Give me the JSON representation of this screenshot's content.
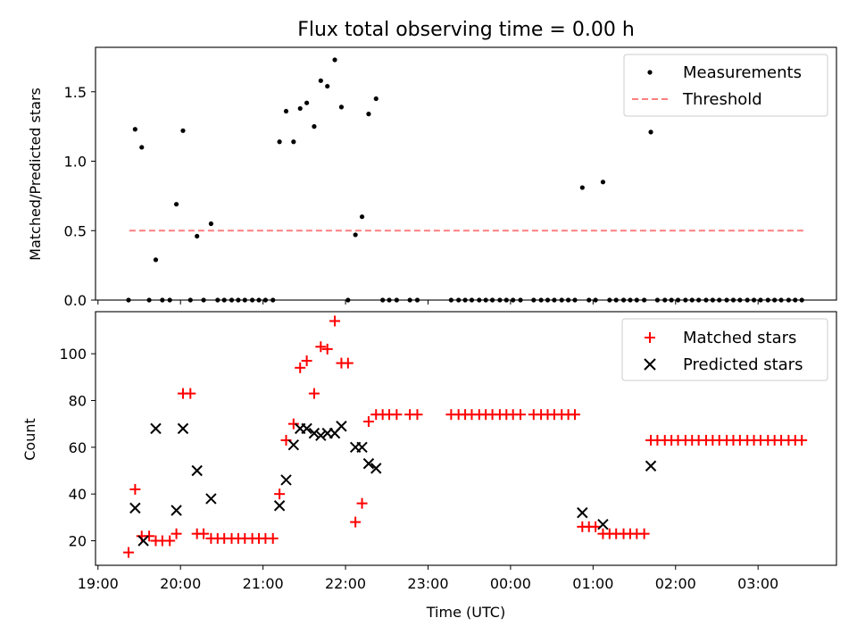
{
  "chart_data": {
    "title": "Flux total observing time = 0.00 h",
    "x_axis": {
      "label": "Time (UTC)",
      "ticks": [
        "19:00",
        "20:00",
        "21:00",
        "22:00",
        "23:00",
        "00:00",
        "01:00",
        "02:00",
        "03:00"
      ],
      "tick_hours": [
        19,
        20,
        21,
        22,
        23,
        24,
        25,
        26,
        27
      ],
      "range_hours": [
        18.97,
        27.95
      ]
    },
    "panels": [
      {
        "type": "scatter",
        "ylabel": "Matched/Predicted stars",
        "ylim": [
          0,
          1.82
        ],
        "yticks": [
          0.0,
          0.5,
          1.0,
          1.5
        ],
        "ytick_labels": [
          "0.0",
          "0.5",
          "1.0",
          "1.5"
        ],
        "legend_position": "upper right",
        "threshold": {
          "name": "Threshold",
          "color": "#ff7f7f",
          "y": 0.5,
          "x_range": [
            19.38,
            27.55
          ]
        },
        "series": [
          {
            "name": "Measurements",
            "color": "#000000",
            "marker": "dot",
            "points": [
              [
                19.37,
                0.0
              ],
              [
                19.45,
                1.23
              ],
              [
                19.53,
                1.1
              ],
              [
                19.62,
                0.0
              ],
              [
                19.7,
                0.29
              ],
              [
                19.78,
                0.0
              ],
              [
                19.87,
                0.0
              ],
              [
                19.95,
                0.69
              ],
              [
                20.03,
                1.22
              ],
              [
                20.12,
                0.0
              ],
              [
                20.2,
                0.46
              ],
              [
                20.28,
                0.0
              ],
              [
                20.37,
                0.55
              ],
              [
                20.45,
                0.0
              ],
              [
                20.53,
                0.0
              ],
              [
                20.62,
                0.0
              ],
              [
                20.7,
                0.0
              ],
              [
                20.78,
                0.0
              ],
              [
                20.87,
                0.0
              ],
              [
                20.95,
                0.0
              ],
              [
                21.03,
                0.0
              ],
              [
                21.12,
                0.0
              ],
              [
                21.2,
                1.14
              ],
              [
                21.28,
                1.36
              ],
              [
                21.37,
                1.14
              ],
              [
                21.45,
                1.38
              ],
              [
                21.53,
                1.42
              ],
              [
                21.62,
                1.25
              ],
              [
                21.7,
                1.58
              ],
              [
                21.78,
                1.54
              ],
              [
                21.87,
                1.73
              ],
              [
                21.95,
                1.39
              ],
              [
                22.03,
                0.0
              ],
              [
                22.12,
                0.47
              ],
              [
                22.2,
                0.6
              ],
              [
                22.28,
                1.34
              ],
              [
                22.37,
                1.45
              ],
              [
                22.45,
                0.0
              ],
              [
                22.53,
                0.0
              ],
              [
                22.62,
                0.0
              ],
              [
                22.78,
                0.0
              ],
              [
                22.87,
                0.0
              ],
              [
                23.28,
                0.0
              ],
              [
                23.37,
                0.0
              ],
              [
                23.45,
                0.0
              ],
              [
                23.53,
                0.0
              ],
              [
                23.62,
                0.0
              ],
              [
                23.7,
                0.0
              ],
              [
                23.78,
                0.0
              ],
              [
                23.87,
                0.0
              ],
              [
                23.95,
                0.0
              ],
              [
                24.03,
                0.0
              ],
              [
                24.12,
                0.0
              ],
              [
                24.28,
                0.0
              ],
              [
                24.37,
                0.0
              ],
              [
                24.45,
                0.0
              ],
              [
                24.53,
                0.0
              ],
              [
                24.62,
                0.0
              ],
              [
                24.7,
                0.0
              ],
              [
                24.78,
                0.0
              ],
              [
                24.87,
                0.81
              ],
              [
                24.95,
                0.0
              ],
              [
                25.03,
                0.0
              ],
              [
                25.12,
                0.85
              ],
              [
                25.2,
                0.0
              ],
              [
                25.28,
                0.0
              ],
              [
                25.37,
                0.0
              ],
              [
                25.45,
                0.0
              ],
              [
                25.53,
                0.0
              ],
              [
                25.62,
                0.0
              ],
              [
                25.7,
                1.21
              ],
              [
                25.78,
                0.0
              ],
              [
                25.87,
                0.0
              ],
              [
                25.95,
                0.0
              ],
              [
                26.03,
                0.0
              ],
              [
                26.12,
                0.0
              ],
              [
                26.2,
                0.0
              ],
              [
                26.28,
                0.0
              ],
              [
                26.37,
                0.0
              ],
              [
                26.45,
                0.0
              ],
              [
                26.53,
                0.0
              ],
              [
                26.62,
                0.0
              ],
              [
                26.7,
                0.0
              ],
              [
                26.78,
                0.0
              ],
              [
                26.87,
                0.0
              ],
              [
                26.95,
                0.0
              ],
              [
                27.03,
                0.0
              ],
              [
                27.12,
                0.0
              ],
              [
                27.2,
                0.0
              ],
              [
                27.28,
                0.0
              ],
              [
                27.37,
                0.0
              ],
              [
                27.45,
                0.0
              ],
              [
                27.53,
                0.0
              ]
            ]
          }
        ]
      },
      {
        "type": "scatter",
        "ylabel": "Count",
        "ylim": [
          9.5,
          118
        ],
        "yticks": [
          20,
          40,
          60,
          80,
          100
        ],
        "ytick_labels": [
          "20",
          "40",
          "60",
          "80",
          "100"
        ],
        "legend_position": "upper right",
        "series": [
          {
            "name": "Matched stars",
            "color": "#ff0000",
            "marker": "plus",
            "points": [
              [
                19.37,
                15
              ],
              [
                19.45,
                42
              ],
              [
                19.53,
                22
              ],
              [
                19.62,
                22
              ],
              [
                19.7,
                20
              ],
              [
                19.78,
                20
              ],
              [
                19.87,
                20
              ],
              [
                19.95,
                23
              ],
              [
                20.03,
                83
              ],
              [
                20.12,
                83
              ],
              [
                20.2,
                23
              ],
              [
                20.28,
                23
              ],
              [
                20.37,
                21
              ],
              [
                20.45,
                21
              ],
              [
                20.53,
                21
              ],
              [
                20.62,
                21
              ],
              [
                20.7,
                21
              ],
              [
                20.78,
                21
              ],
              [
                20.87,
                21
              ],
              [
                20.95,
                21
              ],
              [
                21.03,
                21
              ],
              [
                21.12,
                21
              ],
              [
                21.2,
                40
              ],
              [
                21.28,
                63
              ],
              [
                21.37,
                70
              ],
              [
                21.45,
                94
              ],
              [
                21.53,
                97
              ],
              [
                21.62,
                83
              ],
              [
                21.7,
                103
              ],
              [
                21.78,
                102
              ],
              [
                21.87,
                114
              ],
              [
                21.95,
                96
              ],
              [
                22.03,
                96
              ],
              [
                22.12,
                28
              ],
              [
                22.2,
                36
              ],
              [
                22.28,
                71
              ],
              [
                22.37,
                74
              ],
              [
                22.45,
                74
              ],
              [
                22.53,
                74
              ],
              [
                22.62,
                74
              ],
              [
                22.78,
                74
              ],
              [
                22.87,
                74
              ],
              [
                23.28,
                74
              ],
              [
                23.37,
                74
              ],
              [
                23.45,
                74
              ],
              [
                23.53,
                74
              ],
              [
                23.62,
                74
              ],
              [
                23.7,
                74
              ],
              [
                23.78,
                74
              ],
              [
                23.87,
                74
              ],
              [
                23.95,
                74
              ],
              [
                24.03,
                74
              ],
              [
                24.12,
                74
              ],
              [
                24.28,
                74
              ],
              [
                24.37,
                74
              ],
              [
                24.45,
                74
              ],
              [
                24.53,
                74
              ],
              [
                24.62,
                74
              ],
              [
                24.7,
                74
              ],
              [
                24.78,
                74
              ],
              [
                24.87,
                26
              ],
              [
                24.95,
                26
              ],
              [
                25.03,
                26
              ],
              [
                25.12,
                23
              ],
              [
                25.2,
                23
              ],
              [
                25.28,
                23
              ],
              [
                25.37,
                23
              ],
              [
                25.45,
                23
              ],
              [
                25.53,
                23
              ],
              [
                25.62,
                23
              ],
              [
                25.7,
                63
              ],
              [
                25.78,
                63
              ],
              [
                25.87,
                63
              ],
              [
                25.95,
                63
              ],
              [
                26.03,
                63
              ],
              [
                26.12,
                63
              ],
              [
                26.2,
                63
              ],
              [
                26.28,
                63
              ],
              [
                26.37,
                63
              ],
              [
                26.45,
                63
              ],
              [
                26.53,
                63
              ],
              [
                26.62,
                63
              ],
              [
                26.7,
                63
              ],
              [
                26.78,
                63
              ],
              [
                26.87,
                63
              ],
              [
                26.95,
                63
              ],
              [
                27.03,
                63
              ],
              [
                27.12,
                63
              ],
              [
                27.2,
                63
              ],
              [
                27.28,
                63
              ],
              [
                27.37,
                63
              ],
              [
                27.45,
                63
              ],
              [
                27.53,
                63
              ]
            ]
          },
          {
            "name": "Predicted stars",
            "color": "#000000",
            "marker": "x",
            "points": [
              [
                19.45,
                34
              ],
              [
                19.55,
                20
              ],
              [
                19.7,
                68
              ],
              [
                19.95,
                33
              ],
              [
                20.03,
                68
              ],
              [
                20.2,
                50
              ],
              [
                20.37,
                38
              ],
              [
                21.2,
                35
              ],
              [
                21.28,
                46
              ],
              [
                21.37,
                61
              ],
              [
                21.45,
                68
              ],
              [
                21.53,
                68
              ],
              [
                21.62,
                66
              ],
              [
                21.7,
                65
              ],
              [
                21.78,
                66
              ],
              [
                21.87,
                66
              ],
              [
                21.95,
                69
              ],
              [
                22.12,
                60
              ],
              [
                22.2,
                60
              ],
              [
                22.28,
                53
              ],
              [
                22.37,
                51
              ],
              [
                24.87,
                32
              ],
              [
                25.12,
                27
              ],
              [
                25.7,
                52
              ]
            ]
          }
        ]
      }
    ]
  }
}
